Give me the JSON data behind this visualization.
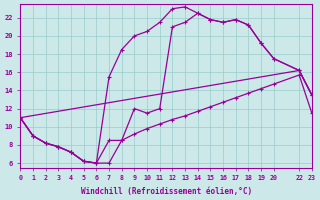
{
  "xlabel": "Windchill (Refroidissement éolien,°C)",
  "bg_color": "#cce8e8",
  "grid_color": "#99cccc",
  "line_color": "#990099",
  "xlim": [
    0,
    23
  ],
  "ylim": [
    5.5,
    23.5
  ],
  "yticks": [
    6,
    8,
    10,
    12,
    14,
    16,
    18,
    20,
    22
  ],
  "xtick_positions": [
    0,
    1,
    2,
    3,
    4,
    5,
    6,
    7,
    8,
    9,
    10,
    11,
    12,
    13,
    14,
    15,
    16,
    17,
    18,
    19,
    20,
    22,
    23
  ],
  "xtick_labels": [
    "0",
    "1",
    "2",
    "3",
    "4",
    "5",
    "6",
    "7",
    "8",
    "9",
    "10",
    "11",
    "12",
    "13",
    "14",
    "15",
    "16",
    "17",
    "18",
    "19",
    "20",
    "22",
    "23"
  ],
  "curve1_x": [
    0,
    1,
    2,
    3,
    4,
    5,
    6,
    7,
    8,
    9,
    10,
    11,
    12,
    13,
    14,
    15,
    16,
    17,
    18,
    19,
    20,
    22,
    23
  ],
  "curve1_y": [
    11,
    9,
    8.2,
    7.8,
    7.2,
    6.2,
    6.0,
    15.5,
    18.5,
    20.0,
    20.5,
    21.5,
    23.0,
    23.2,
    22.5,
    21.8,
    21.5,
    21.8,
    21.2,
    19.2,
    17.5,
    16.2,
    13.5
  ],
  "curve2_x": [
    0,
    1,
    2,
    3,
    4,
    5,
    6,
    7,
    8,
    9,
    10,
    11,
    12,
    13,
    14,
    15,
    16,
    17,
    18,
    19,
    20,
    22,
    23
  ],
  "curve2_y": [
    11,
    9,
    8.2,
    7.8,
    7.2,
    6.2,
    6.0,
    8.5,
    8.5,
    12.0,
    11.5,
    12.0,
    21.0,
    21.5,
    22.5,
    21.8,
    21.5,
    21.8,
    21.2,
    19.2,
    17.5,
    16.2,
    13.5
  ],
  "line3_x": [
    0,
    22,
    23
  ],
  "line3_y": [
    11,
    16.2,
    13.5
  ],
  "line4_x": [
    0,
    1,
    2,
    3,
    4,
    5,
    6,
    7,
    8,
    9,
    10,
    11,
    12,
    13,
    14,
    15,
    16,
    17,
    18,
    19,
    20,
    22,
    23
  ],
  "line4_y": [
    11,
    9,
    8.2,
    7.8,
    7.2,
    6.2,
    6.0,
    6.0,
    8.5,
    9.2,
    9.8,
    10.3,
    10.8,
    11.2,
    11.7,
    12.2,
    12.7,
    13.2,
    13.7,
    14.2,
    14.7,
    15.7,
    11.5
  ]
}
